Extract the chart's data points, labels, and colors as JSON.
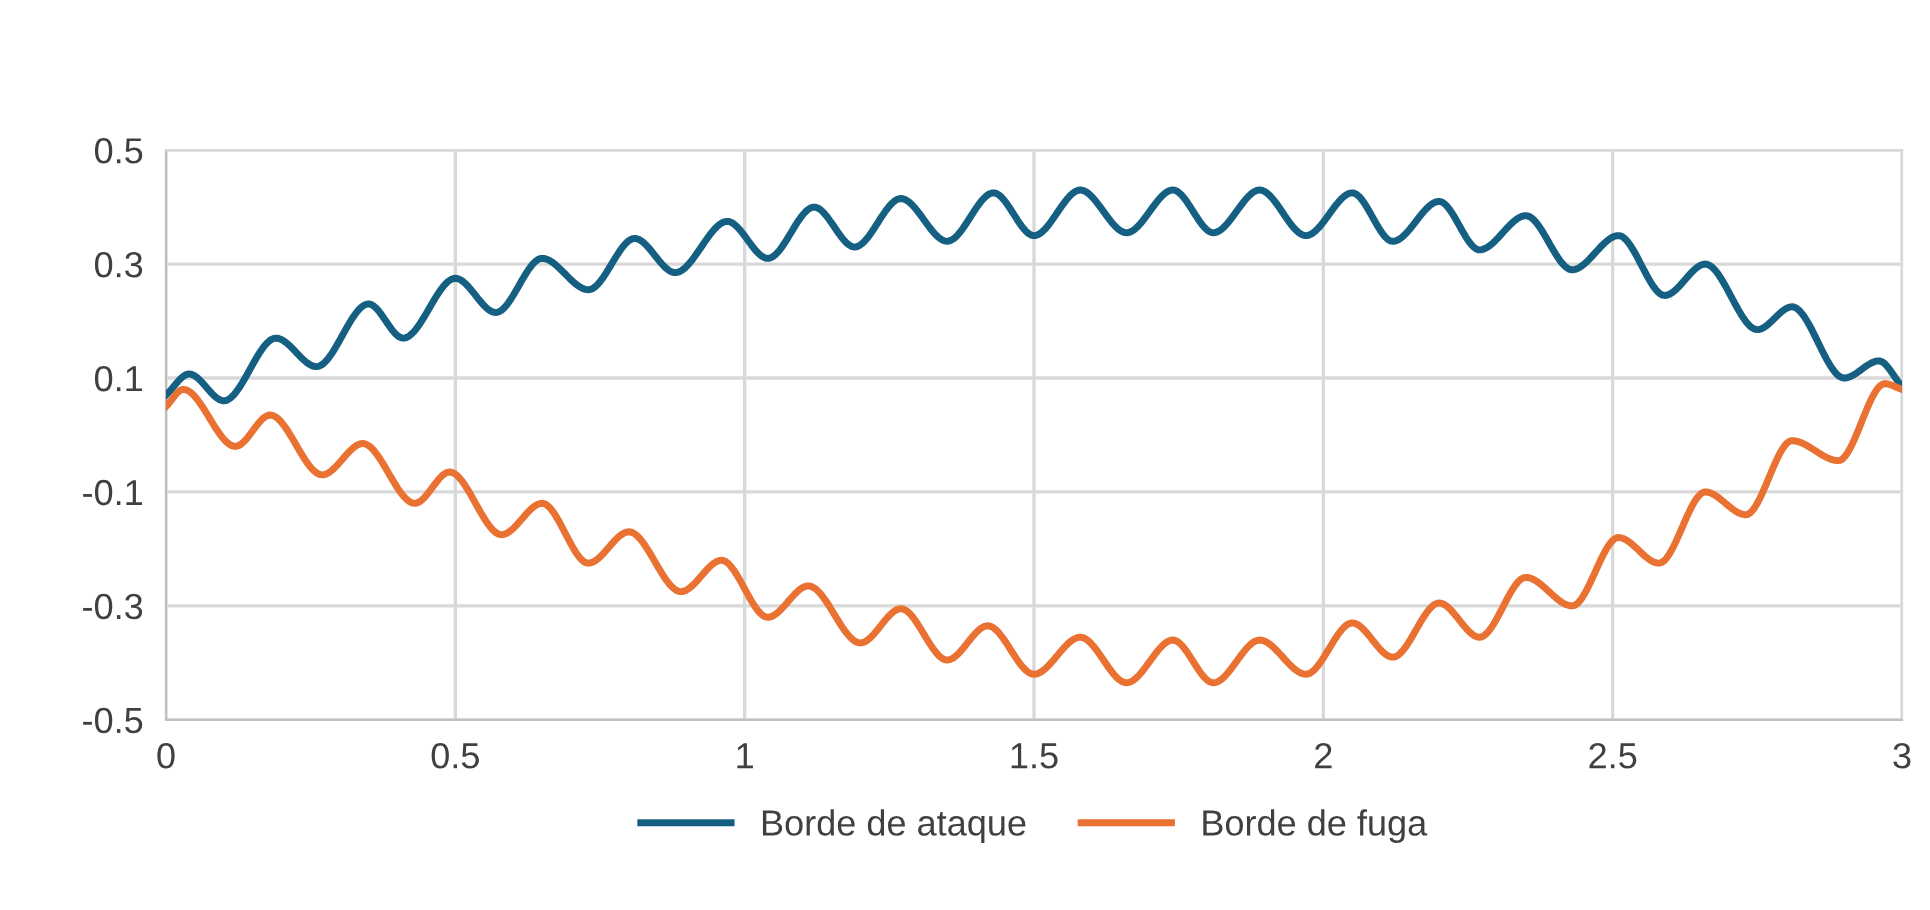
{
  "chart_data": {
    "type": "line",
    "xlim": [
      0,
      3
    ],
    "xticks": [
      0,
      0.5,
      1,
      1.5,
      2,
      2.5,
      3
    ],
    "ylim": [
      -0.5,
      0.5
    ],
    "yticks": [
      -0.5,
      -0.3,
      -0.1,
      0.1,
      0.3,
      0.5
    ],
    "grid": true,
    "legend": "bottom",
    "marker": "none",
    "line_style": "solid",
    "series": [
      {
        "name": "Borde de ataque",
        "color": "#156082",
        "x": [
          0,
          0.04,
          0.1,
          0.19,
          0.26,
          0.35,
          0.41,
          0.5,
          0.57,
          0.65,
          0.73,
          0.81,
          0.88,
          0.97,
          1.04,
          1.12,
          1.19,
          1.27,
          1.35,
          1.43,
          1.5,
          1.58,
          1.66,
          1.74,
          1.81,
          1.89,
          1.97,
          2.05,
          2.12,
          2.2,
          2.27,
          2.35,
          2.43,
          2.51,
          2.59,
          2.66,
          2.75,
          2.81,
          2.9,
          2.96,
          3
        ],
        "values": [
          0.07,
          0.107,
          0.06,
          0.17,
          0.12,
          0.23,
          0.17,
          0.275,
          0.215,
          0.31,
          0.255,
          0.345,
          0.285,
          0.375,
          0.31,
          0.4,
          0.33,
          0.415,
          0.34,
          0.425,
          0.35,
          0.43,
          0.355,
          0.43,
          0.355,
          0.43,
          0.35,
          0.425,
          0.34,
          0.41,
          0.325,
          0.385,
          0.29,
          0.35,
          0.245,
          0.3,
          0.185,
          0.225,
          0.1,
          0.13,
          0.085
        ]
      },
      {
        "name": "Borde de fuga",
        "color": "#e97132",
        "x": [
          0,
          0.03,
          0.12,
          0.18,
          0.27,
          0.34,
          0.43,
          0.49,
          0.58,
          0.65,
          0.73,
          0.8,
          0.89,
          0.96,
          1.04,
          1.11,
          1.2,
          1.27,
          1.35,
          1.42,
          1.5,
          1.58,
          1.66,
          1.74,
          1.81,
          1.89,
          1.97,
          2.05,
          2.12,
          2.2,
          2.27,
          2.35,
          2.43,
          2.51,
          2.58,
          2.66,
          2.73,
          2.81,
          2.89,
          2.97,
          3
        ],
        "values": [
          0.05,
          0.08,
          -0.02,
          0.035,
          -0.07,
          -0.015,
          -0.12,
          -0.065,
          -0.175,
          -0.12,
          -0.225,
          -0.17,
          -0.275,
          -0.22,
          -0.32,
          -0.265,
          -0.365,
          -0.305,
          -0.395,
          -0.335,
          -0.42,
          -0.355,
          -0.435,
          -0.36,
          -0.435,
          -0.36,
          -0.42,
          -0.33,
          -0.39,
          -0.295,
          -0.355,
          -0.25,
          -0.3,
          -0.18,
          -0.225,
          -0.1,
          -0.14,
          -0.01,
          -0.045,
          0.09,
          0.08
        ]
      }
    ]
  }
}
